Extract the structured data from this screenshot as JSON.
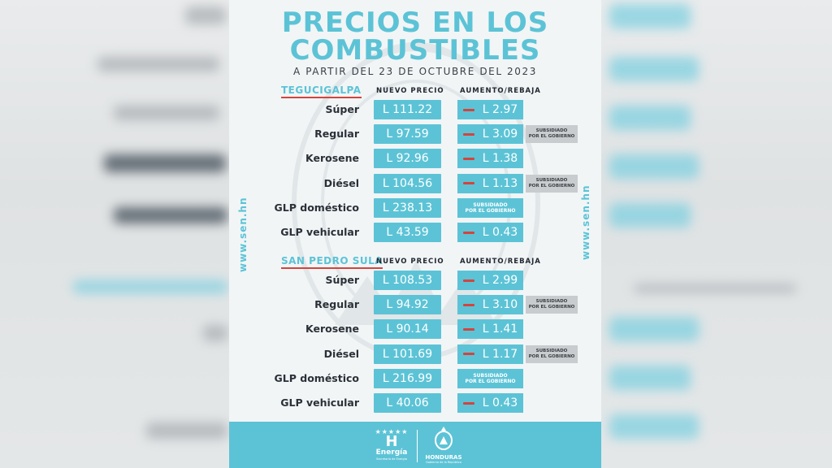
{
  "header": {
    "title_line1": "PRECIOS EN LOS",
    "title_line2": "COMBUSTIBLES",
    "subtitle": "A PARTIR DEL 23 DE OCTUBRE DEL 2023"
  },
  "columns": {
    "price": "NUEVO PRECIO",
    "change": "AUMENTO/REBAJA"
  },
  "subsidy_text": {
    "line1": "SUBSIDIADO",
    "line2": "POR EL GOBIERNO"
  },
  "website": "www.sen.hn",
  "sections": [
    {
      "city": "TEGUCIGALPA",
      "rows": [
        {
          "label": "Súper",
          "price": "L 111.22",
          "change": "L 2.97",
          "subsidized_change": false,
          "note": false
        },
        {
          "label": "Regular",
          "price": "L 97.59",
          "change": "L 3.09",
          "subsidized_change": false,
          "note": true
        },
        {
          "label": "Kerosene",
          "price": "L 92.96",
          "change": "L 1.38",
          "subsidized_change": false,
          "note": false
        },
        {
          "label": "Diésel",
          "price": "L 104.56",
          "change": "L 1.13",
          "subsidized_change": false,
          "note": true
        },
        {
          "label": "GLP doméstico",
          "price": "L 238.13",
          "change": "",
          "subsidized_change": true,
          "note": false
        },
        {
          "label": "GLP vehicular",
          "price": "L 43.59",
          "change": "L 0.43",
          "subsidized_change": false,
          "note": false
        }
      ]
    },
    {
      "city": "SAN PEDRO SULA",
      "rows": [
        {
          "label": "Súper",
          "price": "L 108.53",
          "change": "L 2.99",
          "subsidized_change": false,
          "note": false
        },
        {
          "label": "Regular",
          "price": "L 94.92",
          "change": "L 3.10",
          "subsidized_change": false,
          "note": true
        },
        {
          "label": "Kerosene",
          "price": "L 90.14",
          "change": "L 1.41",
          "subsidized_change": false,
          "note": false
        },
        {
          "label": "Diésel",
          "price": "L 101.69",
          "change": "L 1.17",
          "subsidized_change": false,
          "note": true
        },
        {
          "label": "GLP doméstico",
          "price": "L 216.99",
          "change": "",
          "subsidized_change": true,
          "note": false
        },
        {
          "label": "GLP vehicular",
          "price": "L 40.06",
          "change": "L 0.43",
          "subsidized_change": false,
          "note": false
        }
      ]
    }
  ],
  "footer": {
    "energia_stars": "★★★★★",
    "energia_letter": "H",
    "energia_word": "Energía",
    "energia_tagline": "Secretaría de Energía",
    "honduras_word": "HONDURAS",
    "honduras_tagline": "Gobierno de la República"
  },
  "colors": {
    "accent": "#5cc3d6",
    "minus": "#d2453d",
    "note_bg": "#c9ccce",
    "text": "#2b3038"
  }
}
